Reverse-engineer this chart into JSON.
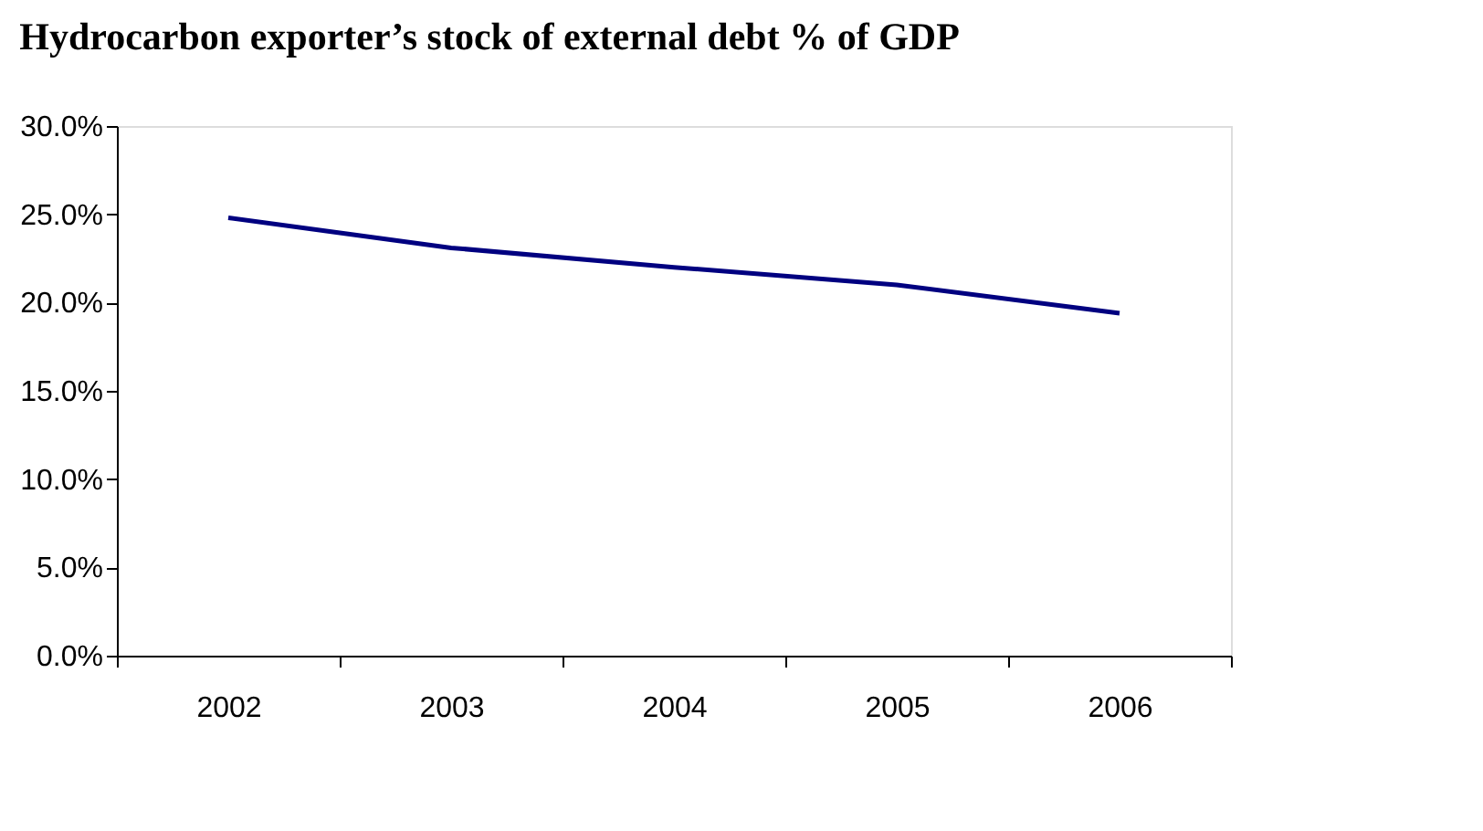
{
  "chart_data": {
    "type": "line",
    "title": "Hydrocarbon exporter’s stock of external debt % of GDP",
    "categories": [
      "2002",
      "2003",
      "2004",
      "2005",
      "2006"
    ],
    "series": [
      {
        "color": "#000080",
        "values": [
          24.8,
          23.1,
          22.0,
          21.0,
          19.4
        ]
      }
    ],
    "ylim": [
      0,
      30
    ],
    "yticks": [
      {
        "value": 0,
        "label": "0.0%"
      },
      {
        "value": 5,
        "label": "5.0%"
      },
      {
        "value": 10,
        "label": "10.0%"
      },
      {
        "value": 15,
        "label": "15.0%"
      },
      {
        "value": 20,
        "label": "20.0%"
      },
      {
        "value": 25,
        "label": "25.0%"
      },
      {
        "value": 30,
        "label": "30.0%"
      }
    ],
    "grid": false,
    "legend": false,
    "marker": "none",
    "line_style": "solid"
  }
}
